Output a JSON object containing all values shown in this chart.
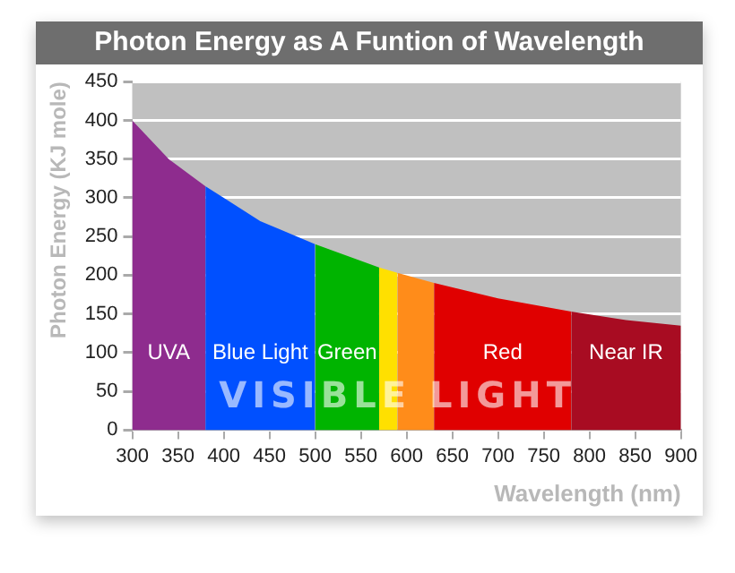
{
  "chart_data": {
    "type": "area",
    "title": "Photon Energy as A Funtion of Wavelength",
    "xlabel": "Wavelength (nm)",
    "ylabel": "Photon Energy (KJ mole)",
    "xlim": [
      300,
      900
    ],
    "xticks": [
      300,
      350,
      400,
      450,
      500,
      550,
      600,
      650,
      700,
      750,
      800,
      850,
      900
    ],
    "ylim": [
      0,
      450
    ],
    "yticks": [
      0,
      50,
      100,
      150,
      200,
      250,
      300,
      350,
      400,
      450
    ],
    "grid": "y",
    "legend": false,
    "annotations": [
      "VISIBLE LIGHT"
    ],
    "series": [
      {
        "name": "UVA",
        "color": "#8e2c8e",
        "x": [
          300,
          340,
          380
        ],
        "values": [
          400,
          350,
          315
        ]
      },
      {
        "name": "Blue Light",
        "color": "#0050ff",
        "x": [
          380,
          440,
          500
        ],
        "values": [
          315,
          270,
          240
        ]
      },
      {
        "name": "Green",
        "color": "#00b400",
        "x": [
          500,
          570
        ],
        "values": [
          240,
          210
        ]
      },
      {
        "color": "#ffe000",
        "x": [
          570,
          590
        ],
        "values": [
          210,
          203
        ]
      },
      {
        "color": "#ff8c1a",
        "x": [
          590,
          630
        ],
        "values": [
          203,
          190
        ]
      },
      {
        "name": "Red",
        "color": "#e00000",
        "x": [
          630,
          700,
          780
        ],
        "values": [
          190,
          170,
          153
        ]
      },
      {
        "name": "Near IR",
        "color": "#a80c22",
        "x": [
          780,
          840,
          900
        ],
        "values": [
          153,
          142,
          135
        ]
      }
    ]
  }
}
